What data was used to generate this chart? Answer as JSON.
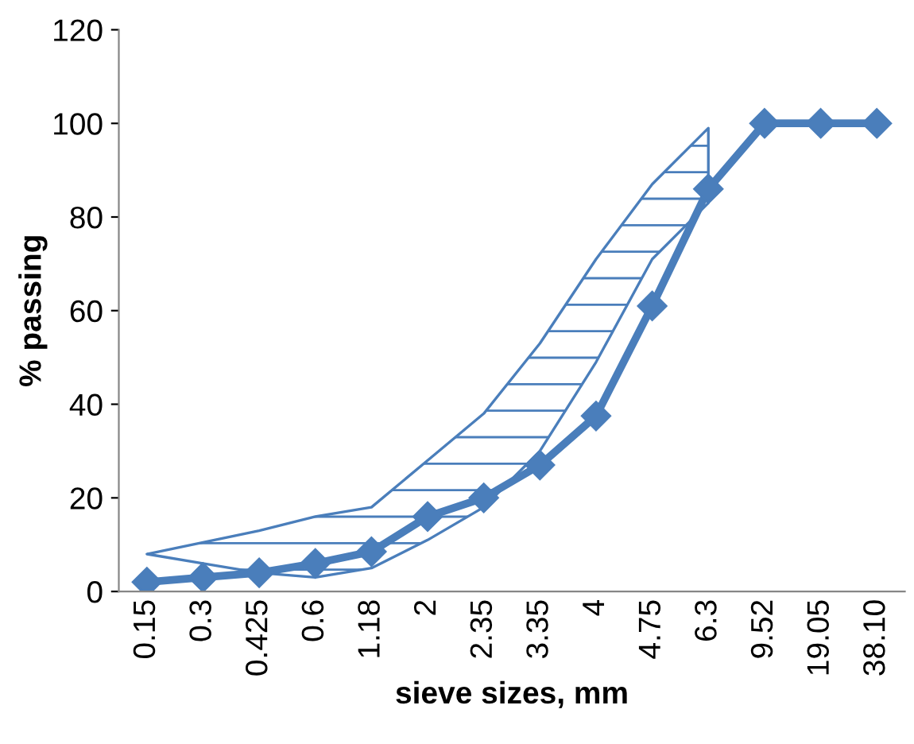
{
  "chart_data": {
    "type": "line",
    "xlabel": "sieve sizes, mm",
    "ylabel": "% passing",
    "categories": [
      "0.15",
      "0.3",
      "0.425",
      "0.6",
      "1.18",
      "2",
      "2.35",
      "3.35",
      "4",
      "4.75",
      "6.3",
      "9.52",
      "19.05",
      "38.10"
    ],
    "series": [
      {
        "color": "#4a7ebb",
        "values": [
          2,
          3,
          4,
          6,
          8.5,
          16,
          20,
          27,
          37.5,
          61,
          86,
          100,
          100,
          100
        ],
        "lower": [
          8,
          6,
          4,
          3,
          5,
          11,
          18,
          30,
          49,
          71,
          83,
          null,
          null,
          null
        ],
        "upper": [
          8,
          10.5,
          13,
          16,
          18,
          28,
          38,
          53,
          71,
          87,
          99,
          null,
          null,
          null
        ]
      }
    ],
    "ylim": [
      0,
      120
    ],
    "yticks": [
      0,
      20,
      40,
      60,
      80,
      100,
      120
    ],
    "marker": "diamond",
    "line_style": "solid",
    "grid": false
  }
}
